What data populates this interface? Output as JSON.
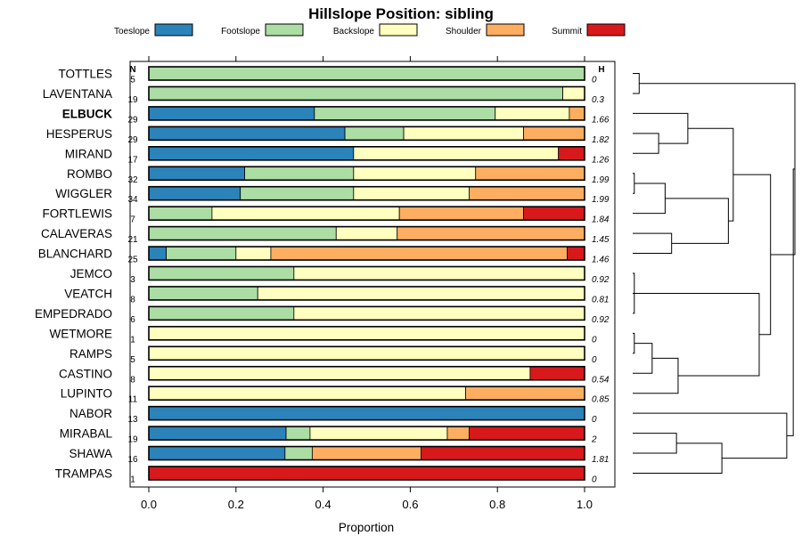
{
  "chart_data": {
    "type": "bar",
    "stacked": true,
    "orientation": "horizontal",
    "title": "Hillslope Position: sibling",
    "xlabel": "Proportion",
    "ylabel": "",
    "xlim": [
      0,
      1
    ],
    "xticks": [
      "0.0",
      "0.2",
      "0.4",
      "0.6",
      "0.8",
      "1.0"
    ],
    "n_header": "N",
    "h_header": "H",
    "legend": [
      {
        "name": "Toeslope",
        "color": "#2b83ba"
      },
      {
        "name": "Footslope",
        "color": "#abdda4"
      },
      {
        "name": "Backslope",
        "color": "#ffffbf"
      },
      {
        "name": "Shoulder",
        "color": "#fdae61"
      },
      {
        "name": "Summit",
        "color": "#d7191c"
      }
    ],
    "rows": [
      {
        "label": "TOTTLES",
        "n": "5",
        "h": "0",
        "bold": false,
        "values": [
          0,
          1.0,
          0,
          0,
          0
        ]
      },
      {
        "label": "LAVENTANA",
        "n": "19",
        "h": "0.3",
        "bold": false,
        "values": [
          0,
          0.95,
          0.05,
          0,
          0
        ]
      },
      {
        "label": "ELBUCK",
        "n": "29",
        "h": "1.66",
        "bold": true,
        "values": [
          0.38,
          0.415,
          0.17,
          0.035,
          0
        ]
      },
      {
        "label": "HESPERUS",
        "n": "29",
        "h": "1.82",
        "bold": false,
        "values": [
          0.45,
          0.135,
          0.275,
          0.14,
          0
        ]
      },
      {
        "label": "MIRAND",
        "n": "17",
        "h": "1.26",
        "bold": false,
        "values": [
          0.47,
          0,
          0.47,
          0,
          0.06
        ]
      },
      {
        "label": "ROMBO",
        "n": "32",
        "h": "1.99",
        "bold": false,
        "values": [
          0.22,
          0.25,
          0.28,
          0.25,
          0
        ]
      },
      {
        "label": "WIGGLER",
        "n": "34",
        "h": "1.99",
        "bold": false,
        "values": [
          0.21,
          0.26,
          0.265,
          0.265,
          0
        ]
      },
      {
        "label": "FORTLEWIS",
        "n": "7",
        "h": "1.84",
        "bold": false,
        "values": [
          0,
          0.145,
          0.43,
          0.285,
          0.14
        ]
      },
      {
        "label": "CALAVERAS",
        "n": "21",
        "h": "1.45",
        "bold": false,
        "values": [
          0,
          0.43,
          0.14,
          0.43,
          0
        ]
      },
      {
        "label": "BLANCHARD",
        "n": "25",
        "h": "1.46",
        "bold": false,
        "values": [
          0.04,
          0.16,
          0.08,
          0.68,
          0.04
        ]
      },
      {
        "label": "JEMCO",
        "n": "3",
        "h": "0.92",
        "bold": false,
        "values": [
          0,
          0.333,
          0.667,
          0,
          0
        ]
      },
      {
        "label": "VEATCH",
        "n": "8",
        "h": "0.81",
        "bold": false,
        "values": [
          0,
          0.25,
          0.75,
          0,
          0
        ]
      },
      {
        "label": "EMPEDRADO",
        "n": "6",
        "h": "0.92",
        "bold": false,
        "values": [
          0,
          0.333,
          0.667,
          0,
          0
        ]
      },
      {
        "label": "WETMORE",
        "n": "1",
        "h": "0",
        "bold": false,
        "values": [
          0,
          0,
          1.0,
          0,
          0
        ]
      },
      {
        "label": "RAMPS",
        "n": "5",
        "h": "0",
        "bold": false,
        "values": [
          0,
          0,
          1.0,
          0,
          0
        ]
      },
      {
        "label": "CASTINO",
        "n": "8",
        "h": "0.54",
        "bold": false,
        "values": [
          0,
          0,
          0.875,
          0,
          0.125
        ]
      },
      {
        "label": "LUPINTO",
        "n": "11",
        "h": "0.85",
        "bold": false,
        "values": [
          0,
          0,
          0.727,
          0.273,
          0
        ]
      },
      {
        "label": "NABOR",
        "n": "13",
        "h": "0",
        "bold": false,
        "values": [
          1.0,
          0,
          0,
          0,
          0
        ]
      },
      {
        "label": "MIRABAL",
        "n": "19",
        "h": "2",
        "bold": false,
        "values": [
          0.315,
          0.055,
          0.315,
          0.05,
          0.265
        ]
      },
      {
        "label": "SHAWA",
        "n": "16",
        "h": "1.81",
        "bold": false,
        "values": [
          0.3125,
          0.0625,
          0,
          0.25,
          0.375
        ]
      },
      {
        "label": "TRAMPAS",
        "n": "1",
        "h": "0",
        "bold": false,
        "values": [
          0,
          0,
          0,
          0,
          1.0
        ]
      }
    ],
    "dendrogram": {
      "merges": [
        {
          "a": "TOTTLES",
          "b": "LAVENTANA",
          "height": 0.04
        },
        {
          "a": "WETMORE",
          "b": "RAMPS",
          "height": 0.01
        },
        {
          "a": "JEMCO",
          "b": "EMPEDRADO",
          "height": 0.01
        },
        {
          "a": "ROMBO",
          "b": "WIGGLER",
          "height": 0.01
        },
        {
          "a": "HESPERUS",
          "b": "MIRAND",
          "height": 0.16
        },
        {
          "a": "ELBUCK",
          "b": "HESPERUS+MIRAND",
          "height": 0.34
        },
        {
          "a": "JEMCO+EMPEDRADO",
          "b": "VEATCH",
          "height": 0.11
        },
        {
          "a": "WETMORE+RAMPS",
          "b": "CASTINO",
          "height": 0.12
        },
        {
          "a": "CALAVERAS",
          "b": "BLANCHARD",
          "height": 0.24
        },
        {
          "a": "ROMBO+WIGGLER",
          "b": "FORTLEWIS",
          "height": 0.2
        },
        {
          "a": "ROMBO+WIGGLER+FORTLEWIS",
          "b": "CALAVERAS+BLANCHARD",
          "height": 0.59
        },
        {
          "a": "WETMORE+RAMPS+CASTINO",
          "b": "LUPINTO",
          "height": 0.28
        },
        {
          "a": "JEMCO+VEATCH+EMPEDRADO",
          "b": "WETMORE+RAMPS+CASTINO+LUPINTO",
          "height": 0.78
        },
        {
          "a": "ELBUCK+HESPERUS+MIRAND",
          "b": "ROMBO..BLANCHARD",
          "height": 0.62
        },
        {
          "a": "MIRABAL",
          "b": "SHAWA",
          "height": 0.27
        },
        {
          "a": "MIRABAL+SHAWA",
          "b": "TRAMPAS",
          "height": 0.55
        },
        {
          "a": "NABOR",
          "b": "MIRABAL+SHAWA+TRAMPAS",
          "height": 0.95
        },
        {
          "a": "ELBUCK..BLANCHARD",
          "b": "JEMCO..LUPINTO",
          "height": 0.85
        },
        {
          "a": "TOTTLES+LAVENTANA",
          "b": "ELBUCK..LUPINTO",
          "height": 1.0
        },
        {
          "a": "TOTTLES..LUPINTO",
          "b": "NABOR..TRAMPAS",
          "height": 0.99
        }
      ]
    }
  }
}
